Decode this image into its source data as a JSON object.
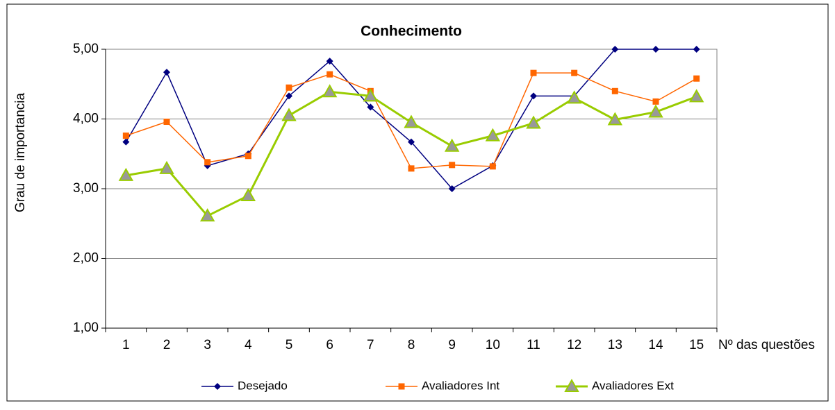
{
  "chart_data": {
    "type": "line",
    "title": "Conhecimento",
    "x_label": "Nº das questões",
    "y_label": "Grau de importancia",
    "categories": [
      "1",
      "2",
      "3",
      "4",
      "5",
      "6",
      "7",
      "8",
      "9",
      "10",
      "11",
      "12",
      "13",
      "14",
      "15"
    ],
    "series": [
      {
        "name": "Desejado",
        "color": "#000080",
        "marker": "diamond",
        "values": [
          3.67,
          4.67,
          3.33,
          3.5,
          4.33,
          4.83,
          4.17,
          3.67,
          3.0,
          3.33,
          4.33,
          4.33,
          5.0,
          5.0,
          5.0
        ]
      },
      {
        "name": "Avaliadores Int",
        "color": "#ff6600",
        "marker": "square",
        "values": [
          3.76,
          3.96,
          3.38,
          3.47,
          4.45,
          4.64,
          4.4,
          3.29,
          3.34,
          3.32,
          4.66,
          4.66,
          4.4,
          4.25,
          4.58
        ]
      },
      {
        "name": "Avaliadores Ext",
        "color": "#99cc00",
        "marker": "triangle",
        "values": [
          3.19,
          3.29,
          2.61,
          2.9,
          4.05,
          4.39,
          4.33,
          3.95,
          3.61,
          3.76,
          3.94,
          4.3,
          3.99,
          4.1,
          4.32
        ]
      }
    ],
    "ylim": [
      1,
      5
    ],
    "yticks": [
      {
        "value": 1,
        "label": "1,00"
      },
      {
        "value": 2,
        "label": "2,00"
      },
      {
        "value": 3,
        "label": "3,00"
      },
      {
        "value": 4,
        "label": "4,00"
      },
      {
        "value": 5,
        "label": "5,00"
      }
    ],
    "grid": true,
    "legend": "bottom"
  }
}
